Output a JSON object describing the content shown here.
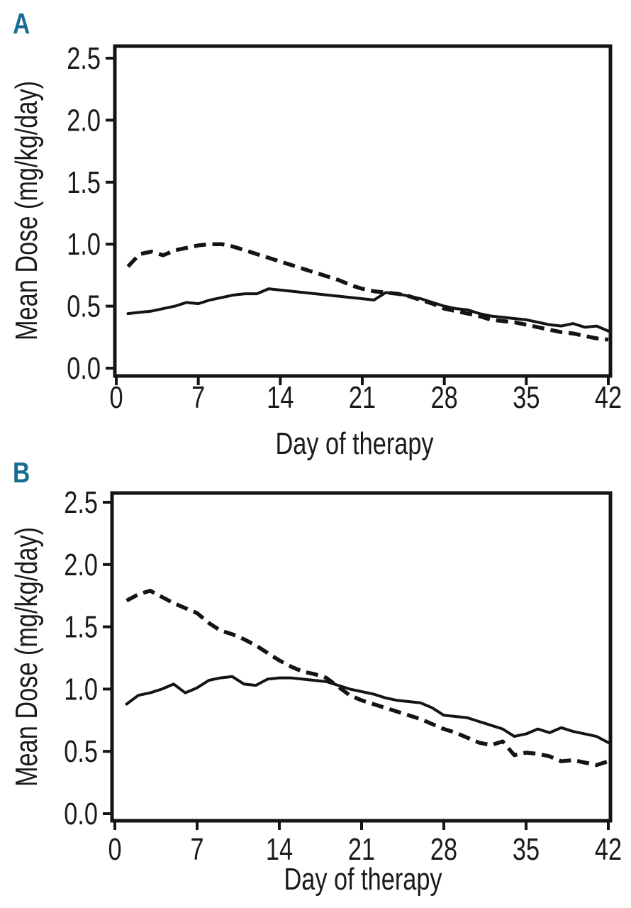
{
  "figure": {
    "description": "Two-panel line figure of mean dose versus day of therapy",
    "background_color": "#ffffff",
    "panel_label_color": "#176c94",
    "line_color": "#141414",
    "text_color": "#1a1a1a"
  },
  "chart_data": [
    {
      "type": "line",
      "panel_label": "A",
      "xlabel": "Day of therapy",
      "ylabel": "Mean Dose (mg/kg/day)",
      "xlim": [
        0,
        42
      ],
      "ylim": [
        0,
        2.5
      ],
      "xticks": [
        0,
        7,
        14,
        21,
        28,
        35,
        42
      ],
      "ytick_labels": [
        "0.0",
        "0.5",
        "1.0",
        "1.5",
        "2.0",
        "2.5"
      ],
      "grid": false,
      "legend_position": "none",
      "x_days": [
        1,
        2,
        3,
        4,
        5,
        6,
        7,
        8,
        9,
        10,
        11,
        12,
        13,
        14,
        15,
        16,
        17,
        18,
        19,
        20,
        21,
        22,
        23,
        24,
        25,
        26,
        27,
        28,
        29,
        30,
        31,
        32,
        33,
        34,
        35,
        36,
        37,
        38,
        39,
        40,
        41,
        42
      ],
      "series": [
        {
          "name": "solid",
          "line_style": "solid",
          "color": "#141414",
          "values": [
            0.44,
            0.45,
            0.46,
            0.48,
            0.5,
            0.53,
            0.52,
            0.55,
            0.57,
            0.59,
            0.6,
            0.6,
            0.64,
            0.63,
            0.62,
            0.61,
            0.6,
            0.59,
            0.58,
            0.57,
            0.56,
            0.55,
            0.61,
            0.6,
            0.58,
            0.56,
            0.53,
            0.5,
            0.48,
            0.47,
            0.44,
            0.42,
            0.41,
            0.4,
            0.39,
            0.37,
            0.35,
            0.34,
            0.36,
            0.33,
            0.34,
            0.3
          ]
        },
        {
          "name": "dashed",
          "line_style": "dashed",
          "color": "#141414",
          "values": [
            0.82,
            0.92,
            0.94,
            0.91,
            0.95,
            0.97,
            0.99,
            1.0,
            1.0,
            0.98,
            0.95,
            0.92,
            0.89,
            0.86,
            0.83,
            0.8,
            0.77,
            0.74,
            0.71,
            0.67,
            0.64,
            0.62,
            0.61,
            0.6,
            0.58,
            0.55,
            0.52,
            0.48,
            0.46,
            0.44,
            0.42,
            0.39,
            0.38,
            0.37,
            0.35,
            0.33,
            0.31,
            0.29,
            0.28,
            0.26,
            0.24,
            0.23
          ]
        }
      ]
    },
    {
      "type": "line",
      "panel_label": "B",
      "xlabel": "Day of therapy",
      "ylabel": "Mean Dose (mg/kg/day)",
      "xlim": [
        0,
        42
      ],
      "ylim": [
        0,
        2.5
      ],
      "xticks": [
        0,
        7,
        14,
        21,
        28,
        35,
        42
      ],
      "ytick_labels": [
        "0.0",
        "0.5",
        "1.0",
        "1.5",
        "2.0",
        "2.5"
      ],
      "grid": false,
      "legend_position": "none",
      "x_days": [
        1,
        2,
        3,
        4,
        5,
        6,
        7,
        8,
        9,
        10,
        11,
        12,
        13,
        14,
        15,
        16,
        17,
        18,
        19,
        20,
        21,
        22,
        23,
        24,
        25,
        26,
        27,
        28,
        29,
        30,
        31,
        32,
        33,
        34,
        35,
        36,
        37,
        38,
        39,
        40,
        41,
        42
      ],
      "series": [
        {
          "name": "solid",
          "line_style": "solid",
          "color": "#141414",
          "values": [
            0.88,
            0.95,
            0.97,
            1.0,
            1.04,
            0.97,
            1.01,
            1.07,
            1.09,
            1.1,
            1.04,
            1.03,
            1.08,
            1.09,
            1.09,
            1.08,
            1.07,
            1.06,
            1.03,
            1.0,
            0.98,
            0.96,
            0.93,
            0.91,
            0.9,
            0.89,
            0.85,
            0.79,
            0.78,
            0.77,
            0.74,
            0.71,
            0.68,
            0.62,
            0.64,
            0.68,
            0.65,
            0.69,
            0.66,
            0.64,
            0.62,
            0.57
          ]
        },
        {
          "name": "dashed",
          "line_style": "dashed",
          "color": "#141414",
          "values": [
            1.71,
            1.76,
            1.79,
            1.74,
            1.69,
            1.65,
            1.61,
            1.53,
            1.47,
            1.44,
            1.4,
            1.35,
            1.29,
            1.23,
            1.18,
            1.14,
            1.12,
            1.09,
            1.02,
            0.95,
            0.91,
            0.88,
            0.85,
            0.82,
            0.79,
            0.76,
            0.72,
            0.68,
            0.65,
            0.61,
            0.57,
            0.55,
            0.58,
            0.47,
            0.49,
            0.48,
            0.46,
            0.42,
            0.43,
            0.41,
            0.39,
            0.42
          ]
        }
      ]
    }
  ]
}
